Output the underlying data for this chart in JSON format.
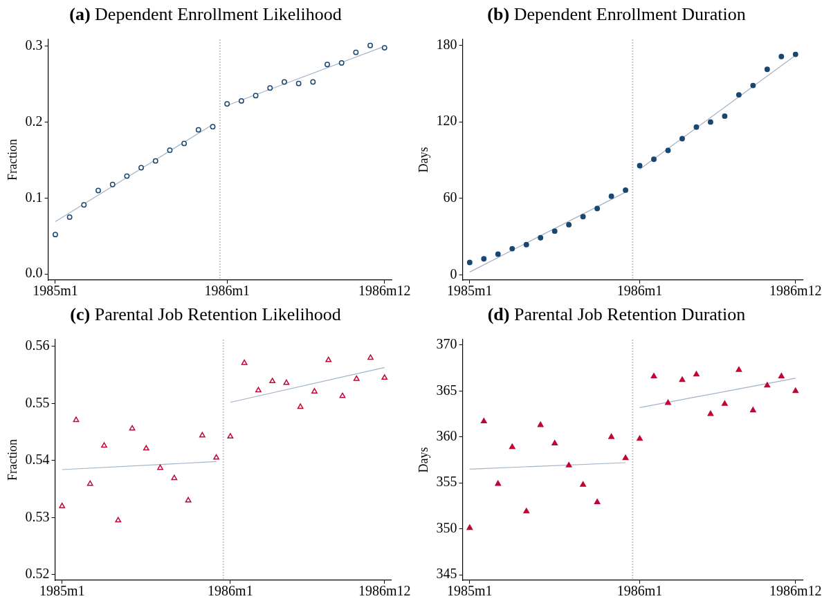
{
  "chart_data": [
    {
      "type": "scatter",
      "title": "(a) Dependent Enrollment Likelihood",
      "ylabel": "Fraction",
      "categories": [
        "1985m1",
        null,
        null,
        null,
        null,
        null,
        null,
        null,
        null,
        null,
        null,
        null,
        "1986m1",
        null,
        null,
        null,
        null,
        null,
        null,
        null,
        null,
        null,
        null,
        "1986m12"
      ],
      "series": [
        {
          "type": "scatter",
          "marker": "circle",
          "color": "#1a476f",
          "values": [
            0.052,
            0.075,
            0.091,
            0.11,
            0.118,
            0.129,
            0.14,
            0.149,
            0.163,
            0.172,
            0.19,
            0.194,
            0.224,
            0.228,
            0.235,
            0.245,
            0.253,
            0.251,
            0.253,
            0.276,
            0.278,
            0.292,
            0.301,
            0.298
          ]
        },
        {
          "type": "line",
          "color": "#9fb3c8",
          "values": [
            0.069,
            null,
            null,
            null,
            null,
            null,
            null,
            null,
            null,
            null,
            null,
            0.197,
            null,
            null,
            null,
            null,
            null,
            null,
            null,
            null,
            null,
            null,
            null,
            null
          ]
        },
        {
          "type": "line",
          "color": "#9fb3c8",
          "values": [
            null,
            null,
            null,
            null,
            null,
            null,
            null,
            null,
            null,
            null,
            null,
            null,
            0.222,
            null,
            null,
            null,
            null,
            null,
            null,
            null,
            null,
            null,
            null,
            0.3
          ]
        }
      ],
      "ylim": [
        -0.008,
        0.309
      ],
      "yticks": [
        {
          "value": 0,
          "label": "0.0"
        },
        0.1,
        0.2,
        0.3
      ]
    },
    {
      "type": "scatter",
      "title": "(b) Dependent Enrollment Duration",
      "ylabel": "Days",
      "categories": [
        "1985m1",
        null,
        null,
        null,
        null,
        null,
        null,
        null,
        null,
        null,
        null,
        null,
        "1986m1",
        null,
        null,
        null,
        null,
        null,
        null,
        null,
        null,
        null,
        null,
        "1986m12"
      ],
      "series": [
        {
          "type": "scatter",
          "marker": "circle",
          "color": "#1a476f",
          "values": [
            9.8,
            12.7,
            16.3,
            20.6,
            23.8,
            29.2,
            34.4,
            39.4,
            45.7,
            52.1,
            61.7,
            66.5,
            85.7,
            90.7,
            97.6,
            106.8,
            115.9,
            119.9,
            124.5,
            141.2,
            148.5,
            161.2,
            171.2,
            172.9
          ]
        },
        {
          "type": "line",
          "color": "#9fb3c8",
          "values": [
            2.3,
            null,
            null,
            null,
            null,
            null,
            null,
            null,
            null,
            null,
            null,
            64.9,
            null,
            null,
            null,
            null,
            null,
            null,
            null,
            null,
            null,
            null,
            null,
            null
          ]
        },
        {
          "type": "line",
          "color": "#9fb3c8",
          "values": [
            null,
            null,
            null,
            null,
            null,
            null,
            null,
            null,
            null,
            null,
            null,
            null,
            82.8,
            null,
            null,
            null,
            null,
            null,
            null,
            null,
            null,
            null,
            null,
            172.1
          ]
        }
      ],
      "ylim": [
        -4,
        184.6
      ],
      "yticks": [
        0,
        60,
        120,
        180
      ]
    },
    {
      "type": "scatter",
      "title": "(c) Parental Job Retention Likelihood",
      "ylabel": "Fraction",
      "categories": [
        "1985m1",
        null,
        null,
        null,
        null,
        null,
        null,
        null,
        null,
        null,
        null,
        null,
        "1986m1",
        null,
        null,
        null,
        null,
        null,
        null,
        null,
        null,
        null,
        null,
        "1986m12"
      ],
      "series": [
        {
          "type": "scatter",
          "marker": "triangle",
          "color": "#c10534",
          "values": [
            0.532,
            0.5471,
            0.5359,
            0.5426,
            0.5295,
            0.5456,
            0.5421,
            0.5387,
            0.5369,
            0.533,
            0.5444,
            0.5405,
            0.5442,
            0.5571,
            0.5523,
            0.5539,
            0.5536,
            0.5494,
            0.5521,
            0.5576,
            0.5513,
            0.5543,
            0.558,
            0.5545
          ]
        },
        {
          "type": "line",
          "color": "#9fb3c8",
          "values": [
            0.5384,
            null,
            null,
            null,
            null,
            null,
            null,
            null,
            null,
            null,
            null,
            0.5398,
            null,
            null,
            null,
            null,
            null,
            null,
            null,
            null,
            null,
            null,
            null,
            null
          ]
        },
        {
          "type": "line",
          "color": "#9fb3c8",
          "values": [
            null,
            null,
            null,
            null,
            null,
            null,
            null,
            null,
            null,
            null,
            null,
            null,
            0.5502,
            null,
            null,
            null,
            null,
            null,
            null,
            null,
            null,
            null,
            null,
            0.5563
          ]
        }
      ],
      "ylim": [
        0.519,
        0.5612
      ],
      "yticks": [
        0.52,
        0.53,
        0.54,
        0.55,
        0.56
      ]
    },
    {
      "type": "scatter",
      "title": "(d) Parental Job Retention Duration",
      "ylabel": "Days",
      "categories": [
        "1985m1",
        null,
        null,
        null,
        null,
        null,
        null,
        null,
        null,
        null,
        null,
        null,
        "1986m1",
        null,
        null,
        null,
        null,
        null,
        null,
        null,
        null,
        null,
        null,
        "1986m12"
      ],
      "series": [
        {
          "type": "scatter",
          "marker": "triangle",
          "color": "#c10534",
          "values": [
            350.1,
            361.7,
            354.9,
            358.9,
            351.9,
            361.3,
            359.3,
            356.9,
            354.8,
            352.9,
            360.0,
            357.7,
            359.8,
            366.6,
            363.7,
            366.2,
            366.8,
            362.5,
            363.6,
            367.3,
            362.9,
            365.6,
            366.6,
            365.0
          ]
        },
        {
          "type": "line",
          "color": "#9fb3c8",
          "values": [
            356.5,
            null,
            null,
            null,
            null,
            null,
            null,
            null,
            null,
            null,
            null,
            357.2,
            null,
            null,
            null,
            null,
            null,
            null,
            null,
            null,
            null,
            null,
            null,
            null
          ]
        },
        {
          "type": "line",
          "color": "#9fb3c8",
          "values": [
            null,
            null,
            null,
            null,
            null,
            null,
            null,
            null,
            null,
            null,
            null,
            null,
            363.2,
            null,
            null,
            null,
            null,
            null,
            null,
            null,
            null,
            null,
            null,
            366.4
          ]
        }
      ],
      "ylim": [
        344.4,
        370.6
      ],
      "yticks": [
        345,
        350,
        355,
        360,
        365,
        370
      ]
    }
  ]
}
